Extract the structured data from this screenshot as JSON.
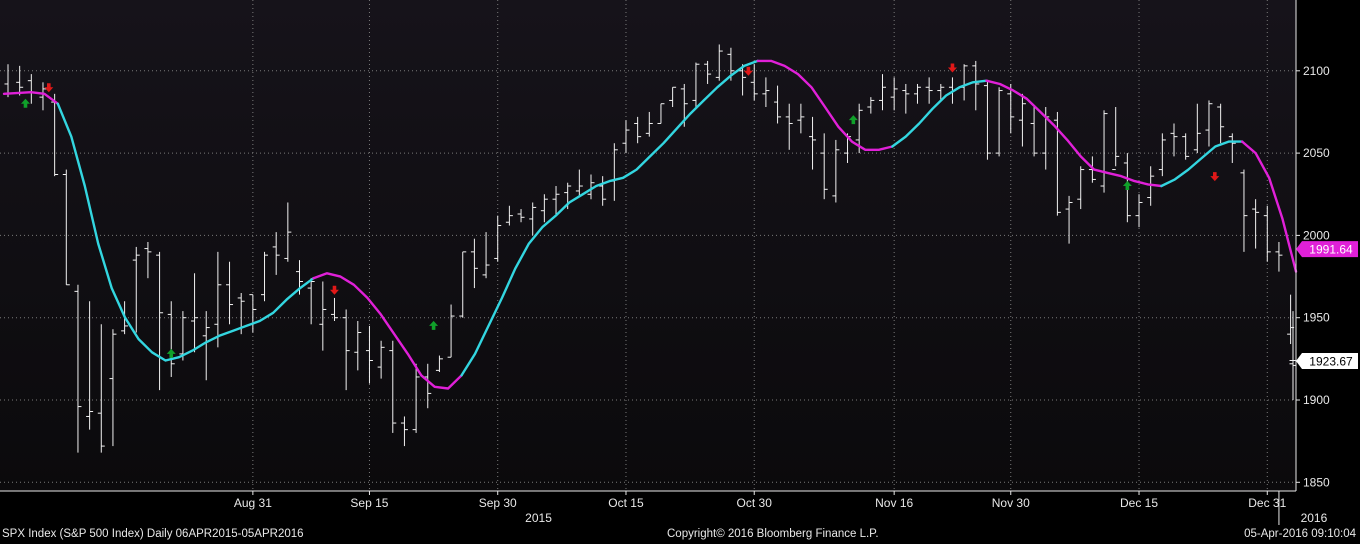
{
  "colors": {
    "background": "#000000",
    "plot_gradient_top": "#16131a",
    "plot_gradient_bottom": "#0b0a0c",
    "bars": "#f2f2f2",
    "ma_up": "#33d6e0",
    "ma_down": "#e020d8",
    "arrow_up": "#10a02a",
    "arrow_down": "#e01818",
    "grid": "#7a7a7a",
    "text": "#e8e8e8",
    "magenta_label_bg": "#e020d8",
    "white_label_bg": "#ffffff"
  },
  "footer": {
    "left": "SPX Index (S&P 500 Index)  Daily 06APR2015-05APR2016",
    "center": "Copyright© 2016 Bloomberg Finance L.P.",
    "right": "05-Apr-2016 09:10:04"
  },
  "chart_data": {
    "type": "ohlc",
    "ylim": [
      1840,
      2130
    ],
    "y_ticks": [
      1850,
      1900,
      1950,
      2000,
      2050,
      2100
    ],
    "x_tick_labels": [
      "Aug 31",
      "Sep 15",
      "Sep 30",
      "Oct 15",
      "Oct 30",
      "Nov 16",
      "Nov 30",
      "Dec 15",
      "Dec 31"
    ],
    "x_tick_index": [
      21,
      31,
      42,
      53,
      64,
      76,
      86,
      97,
      108
    ],
    "year_labels": [
      "2015",
      "2016"
    ],
    "year_label_index": [
      45.5,
      112
    ],
    "year_separator_index": 109,
    "last_price_label": "1923.67",
    "ma_label": "1991.64",
    "bars": [
      [
        2092,
        2104,
        2084,
        2086
      ],
      [
        2093,
        2103,
        2085,
        2090
      ],
      [
        2094,
        2098,
        2080,
        2087
      ],
      [
        2084,
        2093,
        2076,
        2089
      ],
      [
        2081,
        2086,
        2036,
        2037
      ],
      [
        2037,
        2040,
        1970,
        1970
      ],
      [
        1966,
        1970,
        1868,
        1896
      ],
      [
        1890,
        1960,
        1882,
        1893
      ],
      [
        1892,
        1946,
        1868,
        1872
      ],
      [
        1913,
        1943,
        1872,
        1940
      ],
      [
        1942,
        1960,
        1940,
        1945
      ],
      [
        1985,
        1993,
        1941,
        1988
      ],
      [
        1992,
        1996,
        1974,
        1990
      ],
      [
        1988,
        1990,
        1906,
        1953
      ],
      [
        1952,
        1960,
        1914,
        1922
      ],
      [
        1928,
        1954,
        1924,
        1950
      ],
      [
        1948,
        1977,
        1929,
        1950
      ],
      [
        1939,
        1954,
        1912,
        1944
      ],
      [
        1946,
        1990,
        1932,
        1970
      ],
      [
        1970,
        1984,
        1946,
        1958
      ],
      [
        1962,
        1965,
        1940,
        1960
      ],
      [
        1964,
        1964,
        1941,
        1955
      ],
      [
        1964,
        1990,
        1960,
        1988
      ],
      [
        1993,
        2002,
        1976,
        1988
      ],
      [
        1986,
        2020,
        1984,
        2002
      ],
      [
        1978,
        1985,
        1964,
        1972
      ],
      [
        1968,
        1974,
        1946,
        1972
      ],
      [
        1946,
        1972,
        1930,
        1955
      ],
      [
        1952,
        1962,
        1948,
        1950
      ],
      [
        1950,
        1955,
        1906,
        1930
      ],
      [
        1929,
        1948,
        1918,
        1941
      ],
      [
        1930,
        1945,
        1910,
        1924
      ],
      [
        1920,
        1936,
        1913,
        1932
      ],
      [
        1930,
        1936,
        1880,
        1886
      ],
      [
        1886,
        1890,
        1872,
        1882
      ],
      [
        1882,
        1922,
        1880,
        1914
      ],
      [
        1914,
        1922,
        1895,
        1904
      ],
      [
        1918,
        1927,
        1917,
        1925
      ],
      [
        1926,
        1958,
        1926,
        1951
      ],
      [
        1951,
        1990,
        1950,
        1990
      ],
      [
        1990,
        1998,
        1968,
        1980
      ],
      [
        1976,
        2002,
        1974,
        1982
      ],
      [
        1986,
        2012,
        1984,
        2006
      ],
      [
        2008,
        2018,
        2006,
        2012
      ],
      [
        2013,
        2016,
        2008,
        2011
      ],
      [
        2010,
        2020,
        2000,
        2017
      ],
      [
        2015,
        2025,
        2008,
        2022
      ],
      [
        2022,
        2030,
        2012,
        2025
      ],
      [
        2026,
        2032,
        2016,
        2030
      ],
      [
        2027,
        2040,
        2024,
        2030
      ],
      [
        2025,
        2037,
        2022,
        2032
      ],
      [
        2030,
        2036,
        2018,
        2022
      ],
      [
        2033,
        2056,
        2021,
        2052
      ],
      [
        2056,
        2070,
        2050,
        2064
      ],
      [
        2068,
        2072,
        2056,
        2060
      ],
      [
        2062,
        2075,
        2060,
        2068
      ],
      [
        2068,
        2080,
        2068,
        2080
      ],
      [
        2082,
        2090,
        2078,
        2090
      ],
      [
        2089,
        2092,
        2066,
        2080
      ],
      [
        2082,
        2105,
        2078,
        2104
      ],
      [
        2104,
        2106,
        2092,
        2098
      ],
      [
        2096,
        2116,
        2094,
        2112
      ],
      [
        2110,
        2114,
        2094,
        2100
      ],
      [
        2100,
        2104,
        2085,
        2096
      ],
      [
        2093,
        2104,
        2082,
        2086
      ],
      [
        2086,
        2096,
        2078,
        2088
      ],
      [
        2081,
        2091,
        2068,
        2072
      ],
      [
        2072,
        2080,
        2052,
        2068
      ],
      [
        2070,
        2080,
        2062,
        2072
      ],
      [
        2060,
        2072,
        2040,
        2058
      ],
      [
        2050,
        2062,
        2022,
        2028
      ],
      [
        2024,
        2058,
        2020,
        2052
      ],
      [
        2050,
        2062,
        2044,
        2060
      ],
      [
        2058,
        2080,
        2050,
        2076
      ],
      [
        2078,
        2084,
        2074,
        2082
      ],
      [
        2082,
        2098,
        2076,
        2090
      ],
      [
        2084,
        2096,
        2076,
        2089
      ],
      [
        2088,
        2092,
        2074,
        2086
      ],
      [
        2086,
        2092,
        2080,
        2090
      ],
      [
        2090,
        2096,
        2080,
        2088
      ],
      [
        2088,
        2092,
        2082,
        2090
      ],
      [
        2090,
        2096,
        2080,
        2088
      ],
      [
        2090,
        2104,
        2082,
        2103
      ],
      [
        2103,
        2106,
        2076,
        2092
      ],
      [
        2091,
        2094,
        2046,
        2050
      ],
      [
        2050,
        2090,
        2048,
        2088
      ],
      [
        2086,
        2092,
        2062,
        2072
      ],
      [
        2070,
        2086,
        2054,
        2080
      ],
      [
        2068,
        2078,
        2048,
        2050
      ],
      [
        2050,
        2078,
        2040,
        2072
      ],
      [
        2070,
        2075,
        2012,
        2014
      ],
      [
        2016,
        2024,
        1995,
        2020
      ],
      [
        2022,
        2042,
        2016,
        2040
      ],
      [
        2040,
        2048,
        2032,
        2034
      ],
      [
        2030,
        2076,
        2026,
        2074
      ],
      [
        2040,
        2078,
        2042,
        2048
      ],
      [
        2044,
        2050,
        2008,
        2012
      ],
      [
        2012,
        2025,
        2005,
        2020
      ],
      [
        2023,
        2042,
        2018,
        2036
      ],
      [
        2040,
        2062,
        2036,
        2058
      ],
      [
        2062,
        2068,
        2048,
        2060
      ],
      [
        2060,
        2062,
        2046,
        2048
      ],
      [
        2052,
        2080,
        2050,
        2062
      ],
      [
        2064,
        2082,
        2054,
        2080
      ],
      [
        2078,
        2080,
        2056,
        2066
      ],
      [
        2060,
        2062,
        2044,
        2056
      ],
      [
        2038,
        2040,
        1990,
        2012
      ],
      [
        2016,
        2022,
        1992,
        2014
      ],
      [
        2012,
        2018,
        1984,
        1990
      ],
      [
        1990,
        1996,
        1978,
        1988
      ],
      [
        1940,
        1964,
        1934,
        1944
      ],
      [
        1924,
        1954,
        1917,
        1921
      ],
      [
        1922,
        1938,
        1900,
        1924
      ]
    ],
    "ma": {
      "points": [
        [
          0,
          2086
        ],
        [
          2,
          2087
        ],
        [
          3,
          2086
        ],
        [
          4,
          2080
        ],
        [
          5,
          2060
        ],
        [
          6,
          2030
        ],
        [
          7,
          1995
        ],
        [
          8,
          1968
        ],
        [
          9,
          1950
        ],
        [
          10,
          1937
        ],
        [
          11,
          1929
        ],
        [
          12,
          1924
        ],
        [
          13,
          1926
        ],
        [
          14,
          1930
        ],
        [
          15,
          1935
        ],
        [
          16,
          1939
        ],
        [
          17,
          1942
        ],
        [
          18,
          1945
        ],
        [
          19,
          1948
        ],
        [
          20,
          1953
        ],
        [
          21,
          1961
        ],
        [
          22,
          1968
        ],
        [
          23,
          1974
        ],
        [
          24,
          1977
        ],
        [
          25,
          1975
        ],
        [
          26,
          1970
        ],
        [
          27,
          1962
        ],
        [
          28,
          1952
        ],
        [
          29,
          1940
        ],
        [
          30,
          1928
        ],
        [
          31,
          1915
        ],
        [
          32,
          1908
        ],
        [
          33,
          1907
        ],
        [
          34,
          1915
        ],
        [
          35,
          1928
        ],
        [
          36,
          1945
        ],
        [
          37,
          1962
        ],
        [
          38,
          1980
        ],
        [
          39,
          1995
        ],
        [
          40,
          2005
        ],
        [
          41,
          2012
        ],
        [
          42,
          2020
        ],
        [
          43,
          2025
        ],
        [
          44,
          2030
        ],
        [
          45,
          2033
        ],
        [
          46,
          2035
        ],
        [
          47,
          2040
        ],
        [
          48,
          2048
        ],
        [
          49,
          2056
        ],
        [
          50,
          2065
        ],
        [
          51,
          2074
        ],
        [
          52,
          2082
        ],
        [
          53,
          2090
        ],
        [
          54,
          2097
        ],
        [
          55,
          2103
        ],
        [
          56,
          2106
        ],
        [
          57,
          2106
        ],
        [
          58,
          2103
        ],
        [
          59,
          2098
        ],
        [
          60,
          2090
        ],
        [
          61,
          2078
        ],
        [
          62,
          2066
        ],
        [
          63,
          2057
        ],
        [
          64,
          2052
        ],
        [
          65,
          2052
        ],
        [
          66,
          2054
        ],
        [
          67,
          2060
        ],
        [
          68,
          2068
        ],
        [
          69,
          2077
        ],
        [
          70,
          2085
        ],
        [
          71,
          2090
        ],
        [
          72,
          2093
        ],
        [
          73,
          2094
        ],
        [
          74,
          2092
        ],
        [
          75,
          2088
        ],
        [
          76,
          2083
        ],
        [
          77,
          2075
        ],
        [
          78,
          2067
        ],
        [
          79,
          2058
        ],
        [
          80,
          2048
        ],
        [
          81,
          2040
        ],
        [
          82,
          2038
        ],
        [
          83,
          2036
        ],
        [
          84,
          2033
        ],
        [
          85,
          2031
        ],
        [
          86,
          2030
        ],
        [
          87,
          2034
        ],
        [
          88,
          2040
        ],
        [
          89,
          2047
        ],
        [
          90,
          2054
        ],
        [
          91,
          2057
        ],
        [
          92,
          2057
        ],
        [
          93,
          2050
        ],
        [
          94,
          2035
        ],
        [
          95,
          2010
        ],
        [
          96,
          1978
        ]
      ],
      "segments": [
        {
          "trend": "down",
          "from": 0,
          "to": 4
        },
        {
          "trend": "up",
          "from": 4,
          "to": 23
        },
        {
          "trend": "down",
          "from": 23,
          "to": 34
        },
        {
          "trend": "up",
          "from": 34,
          "to": 56
        },
        {
          "trend": "down",
          "from": 56,
          "to": 66
        },
        {
          "trend": "up",
          "from": 66,
          "to": 73
        },
        {
          "trend": "down",
          "from": 73,
          "to": 86
        },
        {
          "trend": "up",
          "from": 86,
          "to": 92
        },
        {
          "trend": "down",
          "from": 92,
          "to": 97
        }
      ]
    },
    "signals": [
      {
        "type": "up",
        "x": 1.5,
        "y": 2080
      },
      {
        "type": "down",
        "x": 3.5,
        "y": 2090
      },
      {
        "type": "up",
        "x": 14,
        "y": 1928
      },
      {
        "type": "down",
        "x": 28,
        "y": 1967
      },
      {
        "type": "up",
        "x": 36.5,
        "y": 1945
      },
      {
        "type": "up",
        "x": 72.5,
        "y": 2070
      },
      {
        "type": "down",
        "x": 63.5,
        "y": 2100
      },
      {
        "type": "down",
        "x": 81,
        "y": 2102
      },
      {
        "type": "up",
        "x": 96,
        "y": 2030
      },
      {
        "type": "down",
        "x": 103.5,
        "y": 2036
      }
    ]
  }
}
